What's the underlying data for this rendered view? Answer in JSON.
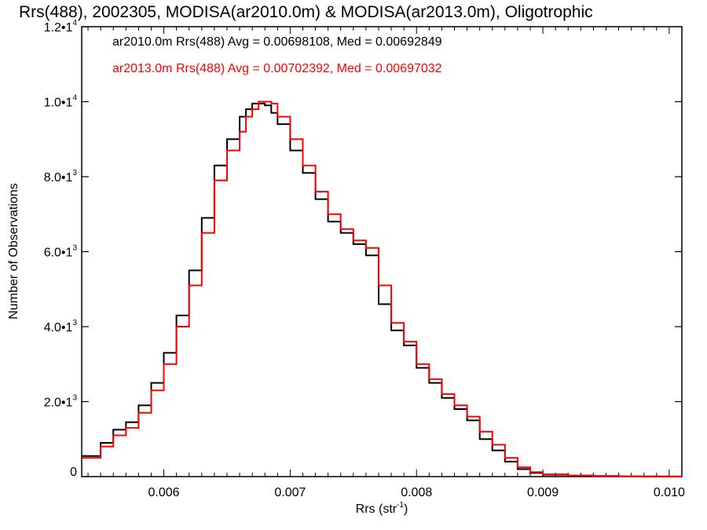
{
  "chart_data": {
    "type": "line",
    "title": "Rrs(488), 2002305, MODISA(ar2010.0m) & MODISA(ar2013.0m), Oligotrophic",
    "xlabel": "Rrs (str",
    "xlabel_sup": "-1",
    "xlabel_suffix": ")",
    "ylabel": "Number of Observations",
    "xlim": [
      0.00535,
      0.0101
    ],
    "ylim": [
      0,
      12000
    ],
    "grid": false,
    "x_ticks": [
      {
        "value": 0.006,
        "label": "0.006"
      },
      {
        "value": 0.007,
        "label": "0.007"
      },
      {
        "value": 0.008,
        "label": "0.008"
      },
      {
        "value": 0.009,
        "label": "0.009"
      },
      {
        "value": 0.01,
        "label": "0.010"
      }
    ],
    "y_ticks": [
      {
        "value": 0,
        "label": "0",
        "sup": ""
      },
      {
        "value": 2000,
        "label": "2.0•1",
        "sup": "3"
      },
      {
        "value": 4000,
        "label": "4.0•1",
        "sup": "3"
      },
      {
        "value": 6000,
        "label": "6.0•1",
        "sup": "3"
      },
      {
        "value": 8000,
        "label": "8.0•1",
        "sup": "3"
      },
      {
        "value": 10000,
        "label": "1.0•1",
        "sup": "4"
      },
      {
        "value": 12000,
        "label": "1.2•1",
        "sup": "4"
      }
    ],
    "legend_placement": "top-left",
    "legend": [
      {
        "text": "ar2010.0m Rrs(488) Avg = 0.00698108, Med = 0.00692849",
        "color": "#000000"
      },
      {
        "text": "ar2013.0m Rrs(488) Avg = 0.00702392, Med = 0.00697032",
        "color": "#ff0000"
      }
    ],
    "series": [
      {
        "color": "#000000",
        "step": true,
        "x": [
          0.00535,
          0.0055,
          0.0056,
          0.0057,
          0.0058,
          0.0059,
          0.006,
          0.0061,
          0.0062,
          0.0063,
          0.0064,
          0.0065,
          0.0066,
          0.00665,
          0.0067,
          0.00675,
          0.0068,
          0.00685,
          0.0069,
          0.007,
          0.0071,
          0.0072,
          0.0073,
          0.0074,
          0.0075,
          0.0076,
          0.0077,
          0.0078,
          0.0079,
          0.008,
          0.0081,
          0.0082,
          0.0083,
          0.0084,
          0.0085,
          0.0086,
          0.0087,
          0.0088,
          0.0089,
          0.009,
          0.0092,
          0.0094,
          0.0096,
          0.0098,
          0.01,
          0.0101
        ],
        "y": [
          550,
          900,
          1250,
          1450,
          1900,
          2500,
          3300,
          4300,
          5500,
          6900,
          8300,
          9000,
          9600,
          9800,
          9950,
          9950,
          9900,
          9700,
          9400,
          8700,
          8100,
          7400,
          6800,
          6500,
          6200,
          5900,
          4600,
          3900,
          3500,
          2900,
          2500,
          2100,
          1800,
          1500,
          1000,
          700,
          400,
          200,
          100,
          50,
          25,
          15,
          10,
          5,
          3,
          3
        ]
      },
      {
        "color": "#ff0000",
        "step": true,
        "x": [
          0.00535,
          0.0055,
          0.0056,
          0.0057,
          0.0058,
          0.0059,
          0.006,
          0.0061,
          0.0062,
          0.0063,
          0.0064,
          0.0065,
          0.0066,
          0.00665,
          0.0067,
          0.00675,
          0.0068,
          0.00685,
          0.0069,
          0.007,
          0.0071,
          0.0072,
          0.0073,
          0.0074,
          0.0075,
          0.0076,
          0.0077,
          0.0078,
          0.0079,
          0.008,
          0.0081,
          0.0082,
          0.0083,
          0.0084,
          0.0085,
          0.0086,
          0.0087,
          0.0088,
          0.0089,
          0.009,
          0.0092,
          0.0094,
          0.0096,
          0.0098,
          0.01,
          0.0101
        ],
        "y": [
          500,
          800,
          1100,
          1300,
          1700,
          2300,
          3000,
          4000,
          5100,
          6500,
          7900,
          8700,
          9200,
          9600,
          9800,
          10000,
          10000,
          9950,
          9600,
          9000,
          8300,
          7600,
          7000,
          6600,
          6300,
          6100,
          5100,
          4100,
          3600,
          3000,
          2600,
          2200,
          1900,
          1600,
          1200,
          850,
          500,
          250,
          120,
          60,
          30,
          15,
          10,
          5,
          3,
          3
        ]
      }
    ]
  }
}
